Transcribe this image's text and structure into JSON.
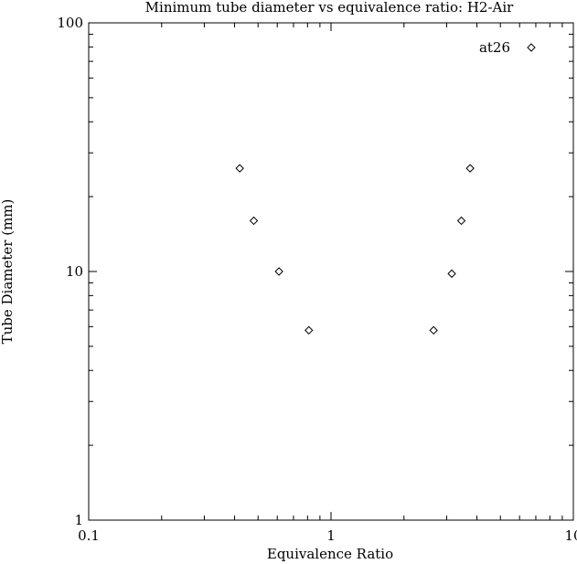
{
  "chart_data": {
    "type": "scatter",
    "title": "Minimum tube diameter vs equivalence ratio: H2-Air",
    "xlabel": "Equivalence Ratio",
    "ylabel": "Tube Diameter (mm)",
    "x_scale": "log",
    "y_scale": "log",
    "xlim": [
      0.1,
      10
    ],
    "ylim": [
      1,
      100
    ],
    "x_ticks": [
      {
        "value": 0.1,
        "label": "0.1"
      },
      {
        "value": 1,
        "label": "1"
      },
      {
        "value": 10,
        "label": "10"
      }
    ],
    "y_ticks": [
      {
        "value": 1,
        "label": "1"
      },
      {
        "value": 10,
        "label": "10"
      },
      {
        "value": 100,
        "label": "100"
      }
    ],
    "grid": false,
    "legend_position": "top-right",
    "marker": "diamond",
    "color": "#000000",
    "series": [
      {
        "name": "at26",
        "x": [
          0.42,
          0.48,
          0.61,
          0.81,
          2.65,
          3.15,
          3.45,
          3.75
        ],
        "y": [
          26,
          16,
          10,
          5.8,
          5.8,
          9.8,
          16,
          26
        ]
      }
    ]
  }
}
